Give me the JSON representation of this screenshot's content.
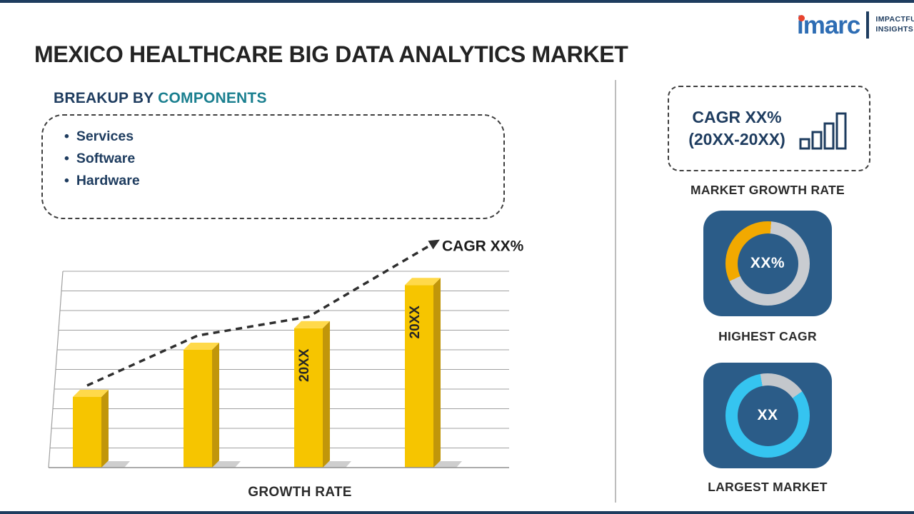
{
  "page": {
    "title": "MEXICO HEALTHCARE BIG DATA ANALYTICS MARKET"
  },
  "logo": {
    "brand": "imarc",
    "tagline1": "IMPACTFUL",
    "tagline2": "INSIGHTS"
  },
  "breakup": {
    "heading_prefix": "BREAKUP BY",
    "heading_highlight": "COMPONENTS",
    "items": [
      "Services",
      "Software",
      "Hardware"
    ]
  },
  "chart_data": {
    "type": "bar",
    "categories": [
      "",
      "",
      "20XX",
      "20XX"
    ],
    "values": [
      36,
      60,
      71,
      93
    ],
    "bar_labels": [
      "",
      "",
      "20XX",
      "20XX"
    ],
    "ylim": [
      0,
      100
    ],
    "xlabel": "GROWTH RATE",
    "trend_label": "CAGR XX%",
    "grid": true,
    "gridline_count": 11,
    "bar_color": "#F6C500",
    "bar_side_color": "#C1960A",
    "bar_top_color": "#FFD94A",
    "trend_color": "#2F2F2F"
  },
  "sidebar": {
    "growth_box": {
      "line1": "CAGR XX%",
      "line2": "(20XX-20XX)",
      "icon": "bar-chart-icon",
      "label": "MARKET GROWTH RATE"
    },
    "highest_cagr": {
      "value": "XX%",
      "label": "HIGHEST CAGR",
      "card_color": "#2B5C88",
      "donut": {
        "from": 245,
        "sweep": 120,
        "arc_color": "#F2A900",
        "base_color": "#C9CCD1"
      }
    },
    "largest_market": {
      "value": "XX",
      "label": "LARGEST MARKET",
      "card_color": "#2B5C88",
      "donut": {
        "from": 350,
        "sweep": 65,
        "arc_color": "#C3C7CC",
        "base_color": "#35C4F0"
      }
    }
  },
  "colors": {
    "navy": "#1E3C5F",
    "card_blue": "#2B5C88",
    "teal": "#1A7F8F",
    "brand_blue": "#2E6DB4",
    "brand_red": "#E8432E",
    "bar_gold": "#F6C500",
    "donut_orange": "#F2A900",
    "donut_cyan": "#35C4F0"
  }
}
